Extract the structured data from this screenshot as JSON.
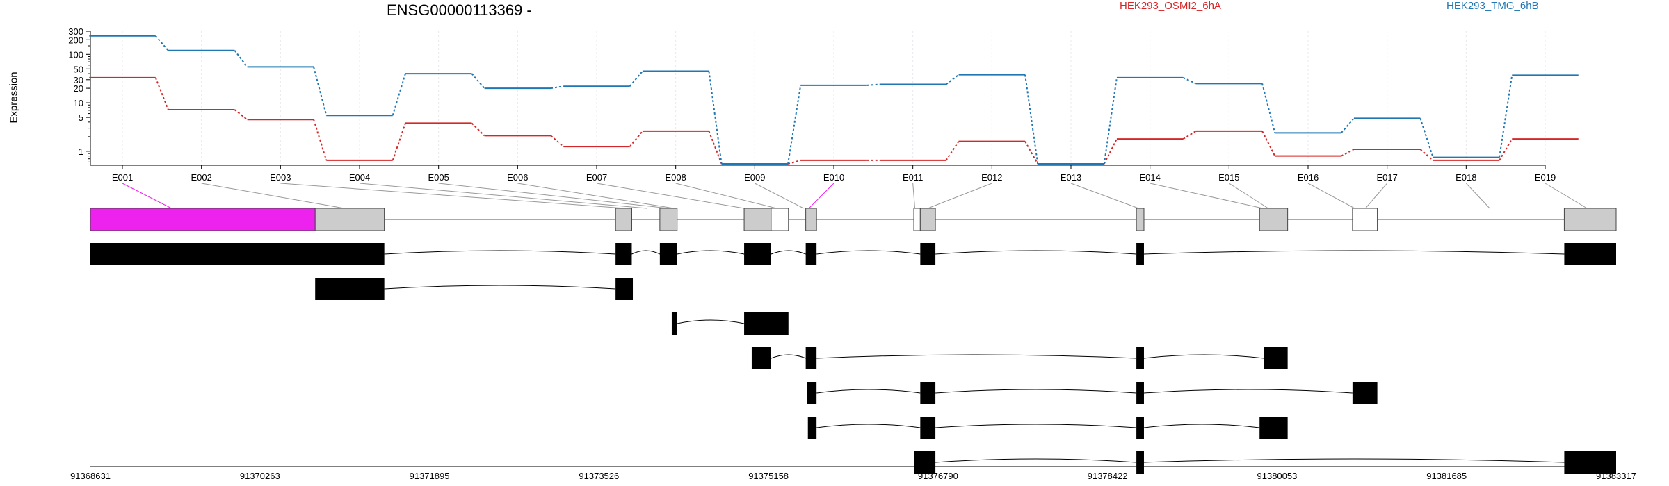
{
  "chart_data": {
    "type": "line",
    "title": "ENSG00000113369 -",
    "ylabel": "Expression",
    "yscale": "log",
    "ylim": [
      0.55,
      300
    ],
    "yticks": [
      "300",
      "200",
      "100",
      "50",
      "30",
      "20",
      "10",
      "5",
      "1"
    ],
    "ytick_values": [
      300,
      200,
      100,
      50,
      30,
      20,
      10,
      5,
      1
    ],
    "grid": true,
    "categories": [
      "E001",
      "E002",
      "E003",
      "E004",
      "E005",
      "E006",
      "E007",
      "E008",
      "E009",
      "E010",
      "E011",
      "E012",
      "E013",
      "E014",
      "E015",
      "E016",
      "E017",
      "E018",
      "E019"
    ],
    "series": [
      {
        "name": "HEK293_OSMI2_6hA",
        "color": "#d62728",
        "values": [
          33,
          7.2,
          4.5,
          0.65,
          3.8,
          2.1,
          1.25,
          2.6,
          0.55,
          0.65,
          0.65,
          1.6,
          0.55,
          1.8,
          2.6,
          0.8,
          1.1,
          0.65,
          1.8
        ]
      },
      {
        "name": "HEK293_TMG_6hB",
        "color": "#1f77b4",
        "values": [
          240,
          120,
          55,
          5.5,
          40,
          20,
          22,
          45,
          0.55,
          23,
          24,
          38,
          0.55,
          33,
          25,
          2.4,
          4.8,
          0.75,
          37
        ]
      }
    ],
    "genomic_axis": [
      "91368631",
      "91370263",
      "91371895",
      "91373526",
      "91375158",
      "91376790",
      "91378422",
      "91380053",
      "91381685",
      "91383317"
    ],
    "gene_model": {
      "highlight_color": "#ee22ee",
      "exon_fill": "#cccccc",
      "highlighted_exons": [
        "E001",
        "E010"
      ]
    },
    "transcripts": [
      {
        "exons": [
          [
            85,
            357
          ],
          [
            571,
            586
          ],
          [
            612,
            628
          ],
          [
            690,
            715
          ],
          [
            747,
            757
          ],
          [
            853,
            867
          ],
          [
            1053,
            1060
          ],
          [
            1449,
            1497
          ]
        ]
      },
      {
        "exons": [
          [
            293,
            357
          ],
          [
            571,
            587
          ]
        ]
      },
      {
        "exons": [
          [
            623,
            628
          ],
          [
            690,
            731
          ]
        ]
      },
      {
        "exons": [
          [
            697,
            715
          ],
          [
            747,
            757
          ],
          [
            1053,
            1060
          ],
          [
            1171,
            1193
          ]
        ]
      },
      {
        "exons": [
          [
            748,
            757
          ],
          [
            853,
            867
          ],
          [
            1053,
            1060
          ],
          [
            1253,
            1276
          ]
        ]
      },
      {
        "exons": [
          [
            749,
            757
          ],
          [
            853,
            867
          ],
          [
            1053,
            1060
          ],
          [
            1167,
            1193
          ]
        ]
      },
      {
        "exons": [
          [
            847,
            867
          ],
          [
            1053,
            1060
          ],
          [
            1449,
            1497
          ]
        ]
      }
    ]
  }
}
